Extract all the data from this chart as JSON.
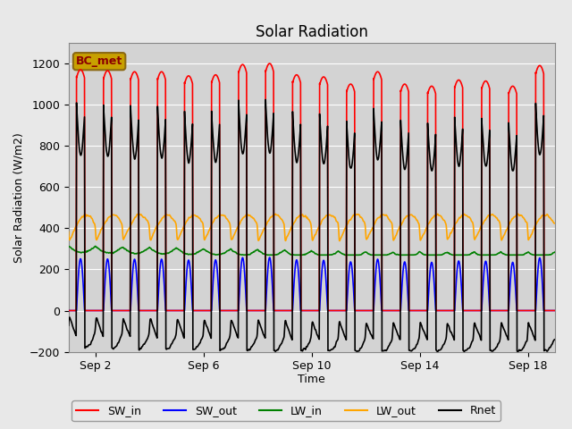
{
  "title": "Solar Radiation",
  "ylabel": "Solar Radiation (W/m2)",
  "xlabel": "Time",
  "ylim": [
    -200,
    1300
  ],
  "yticks": [
    -200,
    0,
    200,
    400,
    600,
    800,
    1000,
    1200
  ],
  "background_color": "#e8e8e8",
  "plot_bg_color": "#d3d3d3",
  "annotation_label": "BC_met",
  "annotation_fg": "#8B0000",
  "annotation_bg": "#c8a000",
  "annotation_edge": "#8B6914",
  "series": {
    "SW_in": {
      "color": "red",
      "lw": 1.2
    },
    "SW_out": {
      "color": "blue",
      "lw": 1.2
    },
    "LW_in": {
      "color": "green",
      "lw": 1.2
    },
    "LW_out": {
      "color": "orange",
      "lw": 1.2
    },
    "Rnet": {
      "color": "black",
      "lw": 1.2
    }
  },
  "n_days": 19,
  "ppd": 288,
  "sep_ticks_day": [
    1,
    5,
    9,
    13,
    17
  ],
  "sep_tick_labels": [
    "Sep 2",
    "Sep 6",
    "Sep 10",
    "Sep 14",
    "Sep 18"
  ],
  "sw_in_peaks": [
    0,
    1170,
    1165,
    1160,
    1160,
    1140,
    1145,
    1195,
    1200,
    1145,
    1135,
    1100,
    1160,
    1100,
    1090,
    1120,
    1115,
    1090,
    1190
  ],
  "grid_color": "#aaaaaa",
  "title_fontsize": 12,
  "axis_fontsize": 9,
  "tick_fontsize": 9
}
